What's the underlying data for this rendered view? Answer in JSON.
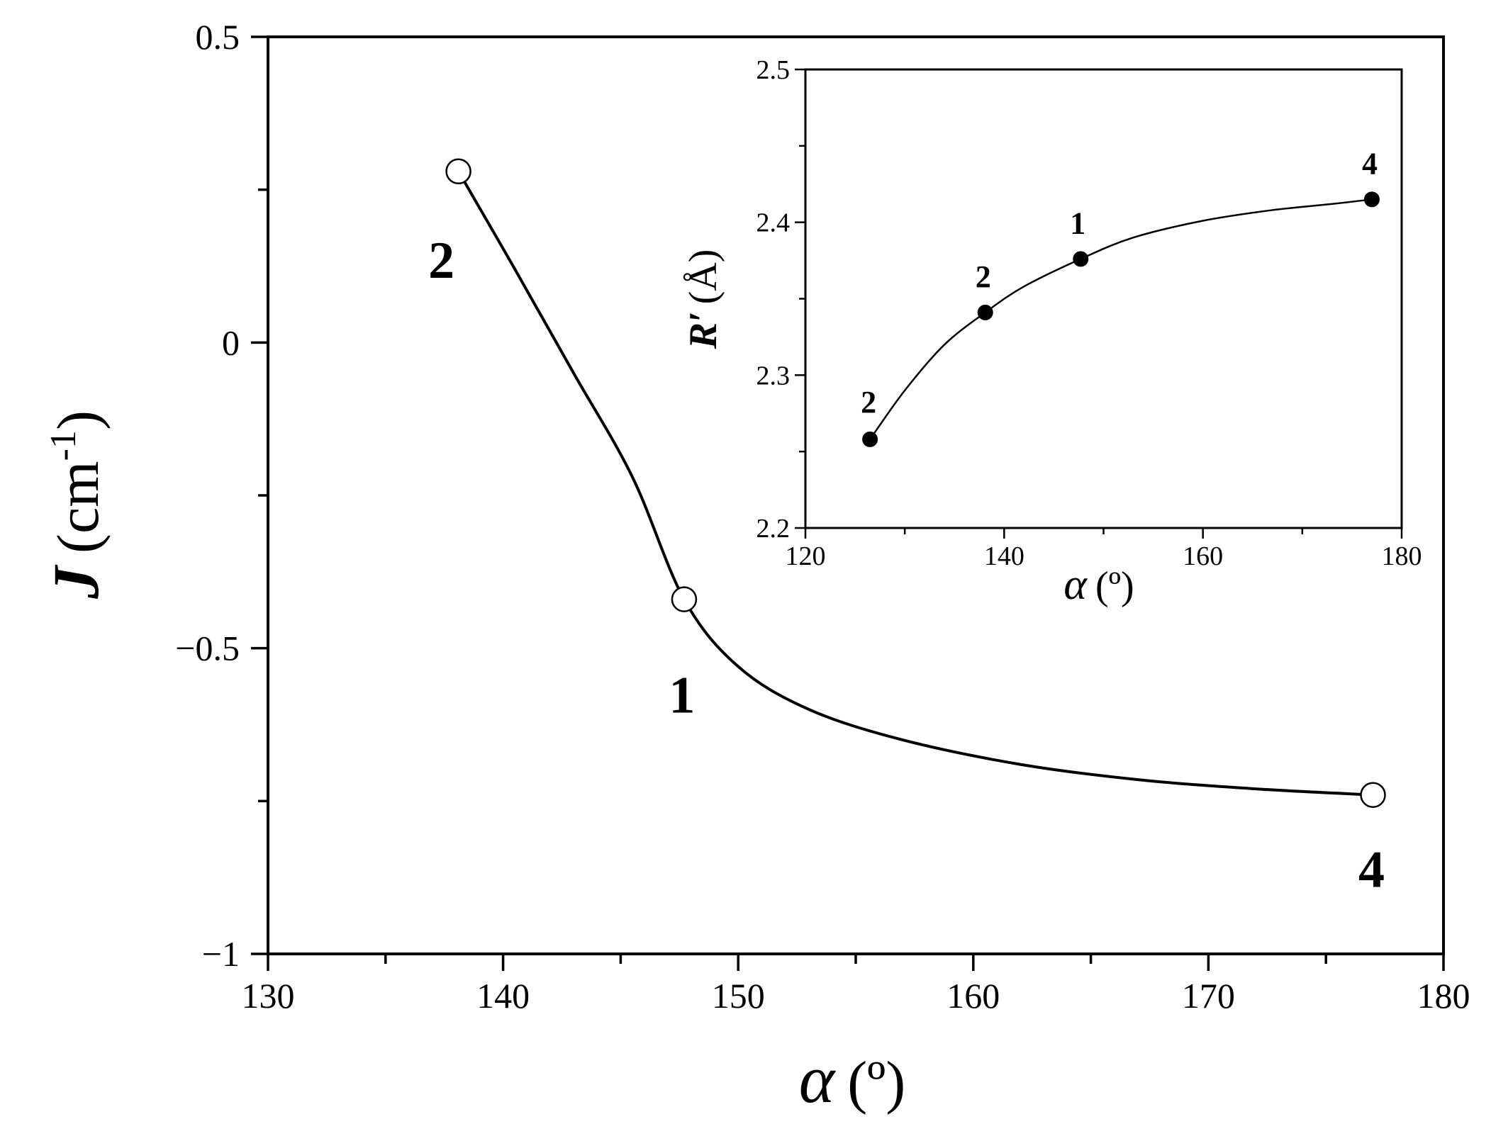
{
  "chart_data": [
    {
      "type": "line",
      "xlim": [
        130,
        180
      ],
      "ylim": [
        -1,
        0.5
      ],
      "x_ticks": [
        130,
        140,
        150,
        160,
        170,
        180
      ],
      "y_ticks": [
        {
          "value": 0.5,
          "label": "0.5"
        },
        {
          "value": 0,
          "label": "0"
        },
        {
          "value": -0.5,
          "label": "−0.5"
        },
        {
          "value": -1,
          "label": "−1"
        }
      ],
      "xlabel": {
        "symbol": "α",
        "unit": "(º)"
      },
      "ylabel": {
        "symbol": "J",
        "unit": "(cm",
        "exponent": "-1",
        "close": ")"
      },
      "points": [
        {
          "x": 138.1,
          "y": 0.28,
          "label": "2"
        },
        {
          "x": 147.7,
          "y": -0.42,
          "label": "1"
        },
        {
          "x": 177.0,
          "y": -0.74,
          "label": "4"
        }
      ],
      "curve": [
        [
          138.1,
          0.28
        ],
        [
          140.5,
          0.12
        ],
        [
          143,
          -0.05
        ],
        [
          145.5,
          -0.22
        ],
        [
          147.7,
          -0.42
        ],
        [
          150,
          -0.53
        ],
        [
          153,
          -0.6
        ],
        [
          157,
          -0.65
        ],
        [
          162,
          -0.69
        ],
        [
          167,
          -0.715
        ],
        [
          172,
          -0.73
        ],
        [
          177.0,
          -0.74
        ]
      ],
      "marker": "open-circle",
      "grid": false
    },
    {
      "type": "line",
      "inset": true,
      "xlim": [
        120,
        180
      ],
      "ylim": [
        2.2,
        2.5
      ],
      "x_ticks": [
        120,
        140,
        160,
        180
      ],
      "y_ticks": [
        {
          "value": 2.2,
          "label": "2.2"
        },
        {
          "value": 2.3,
          "label": "2.3"
        },
        {
          "value": 2.4,
          "label": "2.4"
        },
        {
          "value": 2.5,
          "label": "2.5"
        }
      ],
      "xlabel": {
        "symbol": "α",
        "unit": "(º)"
      },
      "ylabel": {
        "symbol": "R′",
        "unit": "(Å)"
      },
      "points": [
        {
          "x": 126.5,
          "y": 2.258,
          "label": "2"
        },
        {
          "x": 138.1,
          "y": 2.341,
          "label": "2"
        },
        {
          "x": 147.7,
          "y": 2.376,
          "label": "1"
        },
        {
          "x": 177.0,
          "y": 2.415,
          "label": "4"
        }
      ],
      "curve": [
        [
          126.5,
          2.258
        ],
        [
          130,
          2.29
        ],
        [
          134,
          2.32
        ],
        [
          138.1,
          2.341
        ],
        [
          142,
          2.358
        ],
        [
          147.7,
          2.376
        ],
        [
          153,
          2.39
        ],
        [
          160,
          2.401
        ],
        [
          167,
          2.408
        ],
        [
          173,
          2.412
        ],
        [
          177.0,
          2.415
        ]
      ],
      "marker": "filled-circle",
      "grid": false
    }
  ]
}
